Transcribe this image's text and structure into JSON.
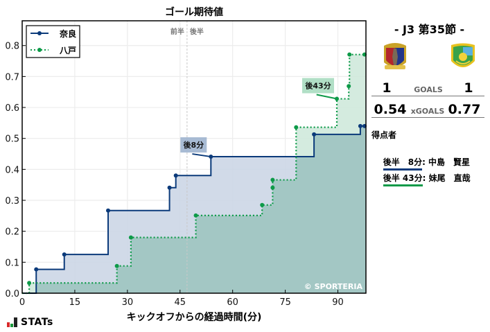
{
  "chart_data": {
    "type": "line",
    "subtype": "step-cumulative",
    "title": "ゴール期待値",
    "xlabel": "キックオフからの経過時間(分)",
    "ylabel": "",
    "xlim": [
      0,
      98
    ],
    "ylim": [
      0,
      0.88
    ],
    "xticks": [
      0,
      15,
      30,
      45,
      60,
      75,
      90
    ],
    "yticks": [
      0.0,
      0.1,
      0.2,
      0.3,
      0.4,
      0.5,
      0.6,
      0.7,
      0.8
    ],
    "grid": true,
    "legend_position": "upper left",
    "halftime_marker": {
      "x": 47,
      "left_label": "前半",
      "right_label": "後半"
    },
    "series": [
      {
        "name": "奈良",
        "color": "#0b3a7a",
        "fill": "#ccd6e5",
        "line_style": "solid",
        "points": [
          [
            4,
            0.077
          ],
          [
            12,
            0.125
          ],
          [
            24.5,
            0.267
          ],
          [
            42,
            0.341
          ],
          [
            43.8,
            0.38
          ],
          [
            53.8,
            0.441
          ],
          [
            83.2,
            0.513
          ],
          [
            96.4,
            0.54
          ],
          [
            97.6,
            0.54
          ]
        ],
        "final": 0.54
      },
      {
        "name": "八戸",
        "color": "#0d9a48",
        "fill": "#cfe9dc",
        "line_style": "dotted",
        "points": [
          [
            2,
            0.033
          ],
          [
            27,
            0.088
          ],
          [
            31,
            0.18
          ],
          [
            49.5,
            0.251
          ],
          [
            68.4,
            0.285
          ],
          [
            71.4,
            0.341
          ],
          [
            71.4,
            0.366
          ],
          [
            78.1,
            0.536
          ],
          [
            89.7,
            0.628
          ],
          [
            93.1,
            0.669
          ],
          [
            93.3,
            0.771
          ],
          [
            97.6,
            0.771
          ]
        ],
        "final": 0.77
      }
    ],
    "annotations": [
      {
        "text": "後8分",
        "team": "奈良",
        "x": 53.8,
        "y": 0.441
      },
      {
        "text": "後43分",
        "team": "八戸",
        "x": 89.7,
        "y": 0.628
      }
    ],
    "watermark": "© SPORTERIA"
  },
  "match": {
    "title": "- J3 第35節 -",
    "home": {
      "name": "奈良",
      "goals": "1",
      "xgoals": "0.54"
    },
    "away": {
      "name": "八戸",
      "goals": "1",
      "xgoals": "0.77"
    },
    "goals_label": "GOALS",
    "xgoals_label": "xGOALS"
  },
  "scorers": {
    "title": "得点者",
    "items": [
      {
        "time": "後半　8分",
        "name": ": 中島　賢星",
        "color": "#0b3a7a"
      },
      {
        "time": "後半 43分",
        "name": ": 妹尾　直哉",
        "color": "#0d9a48"
      }
    ]
  },
  "footer": {
    "logo_text": "STATs"
  }
}
